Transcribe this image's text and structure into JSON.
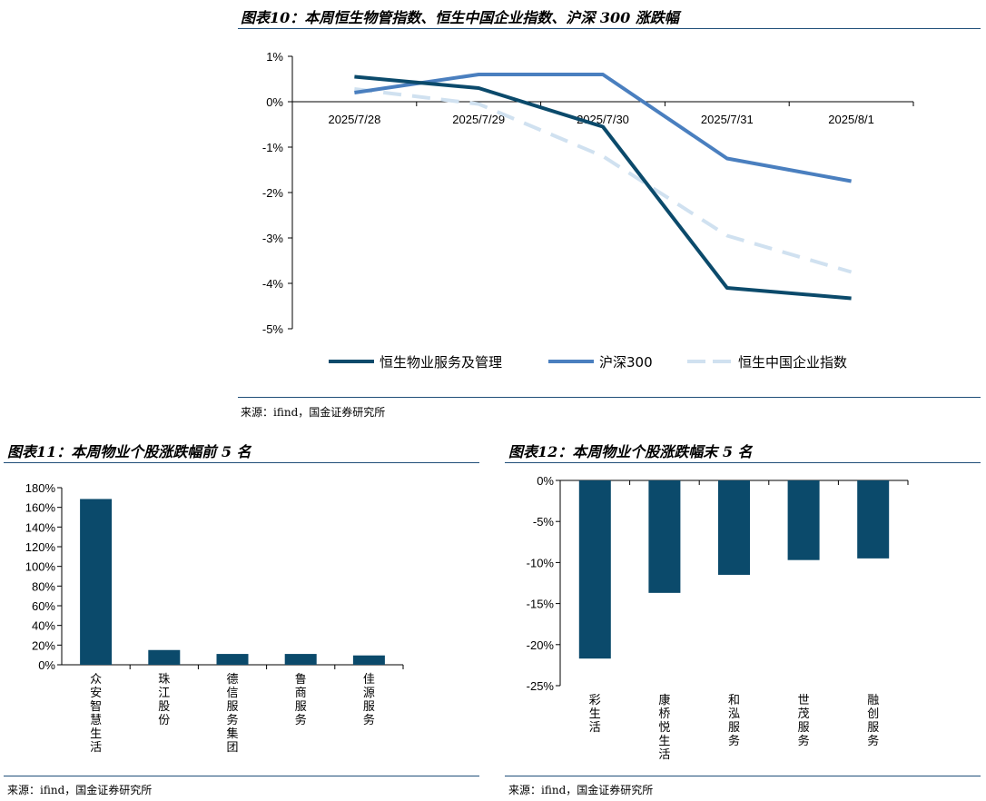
{
  "fig10": {
    "title": "图表10：本周恒生物管指数、恒生中国企业指数、沪深 300 涨跌幅",
    "source": "来源：ifind，国金证券研究所",
    "colors": {
      "hs_property": "#0b4a6b",
      "csi300": "#4a7fbf",
      "hscei": "#d0e1f0"
    }
  },
  "fig11": {
    "title": "图表11：本周物业个股涨跌幅前 5 名",
    "source": "来源：ifind，国金证券研究所",
    "bar_color": "#0b4a6b"
  },
  "fig12": {
    "title": "图表12：本周物业个股涨跌幅末 5 名",
    "source": "来源：ifind，国金证券研究所",
    "bar_color": "#0b4a6b"
  },
  "chart_data": [
    {
      "id": "fig10",
      "type": "line",
      "x": [
        "2025/7/28",
        "2025/7/29",
        "2025/7/30",
        "2025/7/31",
        "2025/8/1"
      ],
      "series": [
        {
          "name": "恒生物业服务及管理",
          "values": [
            0.55,
            0.3,
            -0.55,
            -4.1,
            -4.33
          ],
          "style": "solid"
        },
        {
          "name": "沪深300",
          "values": [
            0.2,
            0.6,
            0.6,
            -1.25,
            -1.75
          ],
          "style": "solid"
        },
        {
          "name": "恒生中国企业指数",
          "values": [
            0.28,
            -0.05,
            -1.2,
            -2.95,
            -3.75
          ],
          "style": "dashed"
        }
      ],
      "ylim": [
        -5,
        1
      ],
      "yticks": [
        "1%",
        "0%",
        "-1%",
        "-2%",
        "-3%",
        "-4%",
        "-5%"
      ],
      "legend": "bottom",
      "grid": false
    },
    {
      "id": "fig11",
      "type": "bar",
      "categories": [
        "众安智慧生活",
        "珠江股份",
        "德信服务集团",
        "鲁商服务",
        "佳源服务"
      ],
      "values": [
        168.5,
        15,
        11,
        11,
        9.5
      ],
      "ylim": [
        0,
        180
      ],
      "yticks": [
        "180%",
        "160%",
        "140%",
        "120%",
        "100%",
        "80%",
        "60%",
        "40%",
        "20%",
        "0%"
      ],
      "grid": false
    },
    {
      "id": "fig12",
      "type": "bar",
      "categories": [
        "彩生活",
        "康桥悦生活",
        "和泓服务",
        "世茂服务",
        "融创服务"
      ],
      "values": [
        -21.7,
        -13.7,
        -11.5,
        -9.7,
        -9.5
      ],
      "ylim": [
        -25,
        0
      ],
      "yticks": [
        "0%",
        "-5%",
        "-10%",
        "-15%",
        "-20%",
        "-25%"
      ],
      "grid": false
    }
  ]
}
